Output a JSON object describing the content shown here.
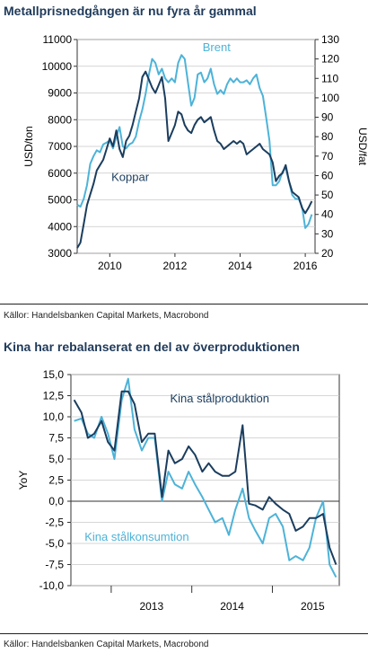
{
  "charts": [
    {
      "title": "Metallprisnedgången är nu fyra år gammal",
      "source": "Källor: Handelsbanken Capital Markets, Macrobond"
    },
    {
      "title": "Kina har rebalanserat en del av överproduktionen",
      "source": "Källor: Handelsbanken Capital Markets, Macrobond"
    }
  ],
  "colors": {
    "dark": "#1b3d5e",
    "light": "#4db3d8",
    "grid": "#c8c8c8",
    "axis": "#333333"
  },
  "chart_data": [
    {
      "type": "line",
      "title": "Metallprisnedgången är nu fyra år gammal",
      "xlabel": "",
      "ylabel": "USD/ton",
      "y2label": "USD/fat",
      "xlim": [
        2009.0,
        2016.3
      ],
      "ylim": [
        3000,
        11000
      ],
      "y2lim": [
        20,
        130
      ],
      "xticks": [
        "2010",
        "2012",
        "2014",
        "2016"
      ],
      "yticks": [
        "3000",
        "4000",
        "5000",
        "6000",
        "7000",
        "8000",
        "9000",
        "10000",
        "11000"
      ],
      "y2ticks": [
        "20",
        "30",
        "40",
        "50",
        "60",
        "70",
        "80",
        "90",
        "100",
        "110",
        "120",
        "130"
      ],
      "grid": true,
      "series": [
        {
          "name": "Koppar",
          "axis": "left",
          "x": [
            2009.0,
            2009.1,
            2009.2,
            2009.3,
            2009.4,
            2009.5,
            2009.6,
            2009.7,
            2009.8,
            2009.9,
            2010.0,
            2010.1,
            2010.2,
            2010.3,
            2010.4,
            2010.5,
            2010.6,
            2010.7,
            2010.8,
            2010.9,
            2011.0,
            2011.1,
            2011.2,
            2011.3,
            2011.4,
            2011.5,
            2011.6,
            2011.7,
            2011.8,
            2011.9,
            2012.0,
            2012.1,
            2012.2,
            2012.3,
            2012.4,
            2012.5,
            2012.6,
            2012.7,
            2012.8,
            2012.9,
            2013.0,
            2013.1,
            2013.2,
            2013.3,
            2013.4,
            2013.5,
            2013.6,
            2013.7,
            2013.8,
            2013.9,
            2014.0,
            2014.1,
            2014.2,
            2014.3,
            2014.4,
            2014.5,
            2014.6,
            2014.7,
            2014.8,
            2014.9,
            2015.0,
            2015.1,
            2015.2,
            2015.3,
            2015.4,
            2015.5,
            2015.6,
            2015.7,
            2015.8,
            2015.9,
            2016.0,
            2016.1,
            2016.2
          ],
          "values": [
            3200,
            3400,
            4100,
            4800,
            5200,
            5600,
            6100,
            6300,
            6500,
            6900,
            7300,
            7000,
            7600,
            6900,
            6600,
            7200,
            7400,
            7800,
            8300,
            8800,
            9600,
            9800,
            9500,
            9200,
            9000,
            9300,
            9600,
            8800,
            7200,
            7500,
            7800,
            8300,
            8200,
            7800,
            7600,
            7500,
            7800,
            8000,
            8100,
            7900,
            8000,
            8100,
            7600,
            7200,
            7100,
            6900,
            7000,
            7100,
            7200,
            7100,
            7200,
            7100,
            6700,
            6800,
            6900,
            7000,
            7100,
            6900,
            6800,
            6700,
            6400,
            5700,
            5900,
            6000,
            6300,
            5700,
            5300,
            5200,
            5100,
            4700,
            4500,
            4700,
            4950
          ]
        },
        {
          "name": "Brent",
          "axis": "right",
          "x": [
            2009.0,
            2009.1,
            2009.2,
            2009.3,
            2009.4,
            2009.5,
            2009.6,
            2009.7,
            2009.8,
            2009.9,
            2010.0,
            2010.1,
            2010.2,
            2010.3,
            2010.4,
            2010.5,
            2010.6,
            2010.7,
            2010.8,
            2010.9,
            2011.0,
            2011.1,
            2011.2,
            2011.3,
            2011.4,
            2011.5,
            2011.6,
            2011.7,
            2011.8,
            2011.9,
            2012.0,
            2012.1,
            2012.2,
            2012.3,
            2012.4,
            2012.5,
            2012.6,
            2012.7,
            2012.8,
            2012.9,
            2013.0,
            2013.1,
            2013.2,
            2013.3,
            2013.4,
            2013.5,
            2013.6,
            2013.7,
            2013.8,
            2013.9,
            2014.0,
            2014.1,
            2014.2,
            2014.3,
            2014.4,
            2014.5,
            2014.6,
            2014.7,
            2014.8,
            2014.9,
            2015.0,
            2015.1,
            2015.2,
            2015.3,
            2015.4,
            2015.5,
            2015.6,
            2015.7,
            2015.8,
            2015.9,
            2016.0,
            2016.1,
            2016.2
          ],
          "values": [
            45,
            44,
            48,
            55,
            66,
            70,
            73,
            72,
            76,
            77,
            78,
            74,
            80,
            85,
            75,
            74,
            76,
            77,
            80,
            88,
            94,
            102,
            112,
            120,
            118,
            112,
            115,
            110,
            108,
            110,
            108,
            118,
            122,
            120,
            108,
            96,
            100,
            112,
            113,
            108,
            110,
            115,
            107,
            102,
            104,
            102,
            107,
            110,
            108,
            110,
            108,
            108,
            109,
            107,
            110,
            112,
            105,
            101,
            90,
            78,
            55,
            55,
            57,
            62,
            64,
            57,
            50,
            48,
            48,
            44,
            33,
            35,
            40
          ]
        }
      ]
    },
    {
      "type": "line",
      "title": "Kina har rebalanserat en del av överproduktionen",
      "xlabel": "",
      "ylabel": "YoY",
      "xlim": [
        2012.5,
        2015.83
      ],
      "ylim": [
        -10,
        15
      ],
      "xticks": [
        "2013",
        "2014",
        "2015"
      ],
      "yticks": [
        "-10,0",
        "-7,5",
        "-5,0",
        "-2,5",
        "0,0",
        "2,5",
        "5,0",
        "7,5",
        "10,0",
        "12,5",
        "15,0"
      ],
      "grid": true,
      "series": [
        {
          "name": "Kina stålproduktion",
          "x": [
            2012.54,
            2012.63,
            2012.71,
            2012.79,
            2012.88,
            2012.96,
            2013.04,
            2013.13,
            2013.21,
            2013.29,
            2013.38,
            2013.46,
            2013.54,
            2013.63,
            2013.71,
            2013.79,
            2013.88,
            2013.96,
            2014.04,
            2014.13,
            2014.21,
            2014.29,
            2014.38,
            2014.46,
            2014.54,
            2014.63,
            2014.71,
            2014.79,
            2014.88,
            2014.96,
            2015.04,
            2015.13,
            2015.21,
            2015.29,
            2015.38,
            2015.46,
            2015.54,
            2015.63,
            2015.71,
            2015.79
          ],
          "values": [
            12.0,
            10.5,
            7.5,
            8.0,
            9.5,
            7.0,
            6.0,
            13.0,
            13.0,
            11.5,
            7.0,
            8.0,
            8.0,
            0.5,
            6.0,
            4.5,
            5.0,
            6.5,
            5.5,
            3.5,
            4.5,
            3.5,
            3.0,
            3.0,
            3.5,
            9.0,
            -0.3,
            -0.5,
            -1.0,
            0.5,
            -0.3,
            -1.0,
            -1.5,
            -3.5,
            -3.0,
            -2.0,
            -2.0,
            -1.5,
            -5.5,
            -7.5
          ]
        },
        {
          "name": "Kina stålkonsumtion",
          "x": [
            2012.54,
            2012.63,
            2012.71,
            2012.79,
            2012.88,
            2012.96,
            2013.04,
            2013.13,
            2013.21,
            2013.29,
            2013.38,
            2013.46,
            2013.54,
            2013.63,
            2013.71,
            2013.79,
            2013.88,
            2013.96,
            2014.04,
            2014.13,
            2014.21,
            2014.29,
            2014.38,
            2014.46,
            2014.54,
            2014.63,
            2014.71,
            2014.79,
            2014.88,
            2014.96,
            2015.04,
            2015.13,
            2015.21,
            2015.29,
            2015.38,
            2015.46,
            2015.54,
            2015.63,
            2015.71,
            2015.79
          ],
          "values": [
            9.5,
            9.8,
            8.0,
            7.5,
            10.0,
            8.0,
            5.0,
            12.0,
            14.5,
            8.5,
            6.0,
            7.5,
            7.5,
            0.0,
            3.5,
            2.0,
            1.5,
            3.5,
            2.0,
            0.5,
            -1.0,
            -2.5,
            -2.0,
            -4.0,
            -1.0,
            1.5,
            -2.0,
            -3.5,
            -5.0,
            -2.0,
            -1.5,
            -3.0,
            -7.0,
            -6.5,
            -7.0,
            -5.5,
            -2.0,
            0.0,
            -7.5,
            -9.0
          ]
        }
      ]
    }
  ]
}
